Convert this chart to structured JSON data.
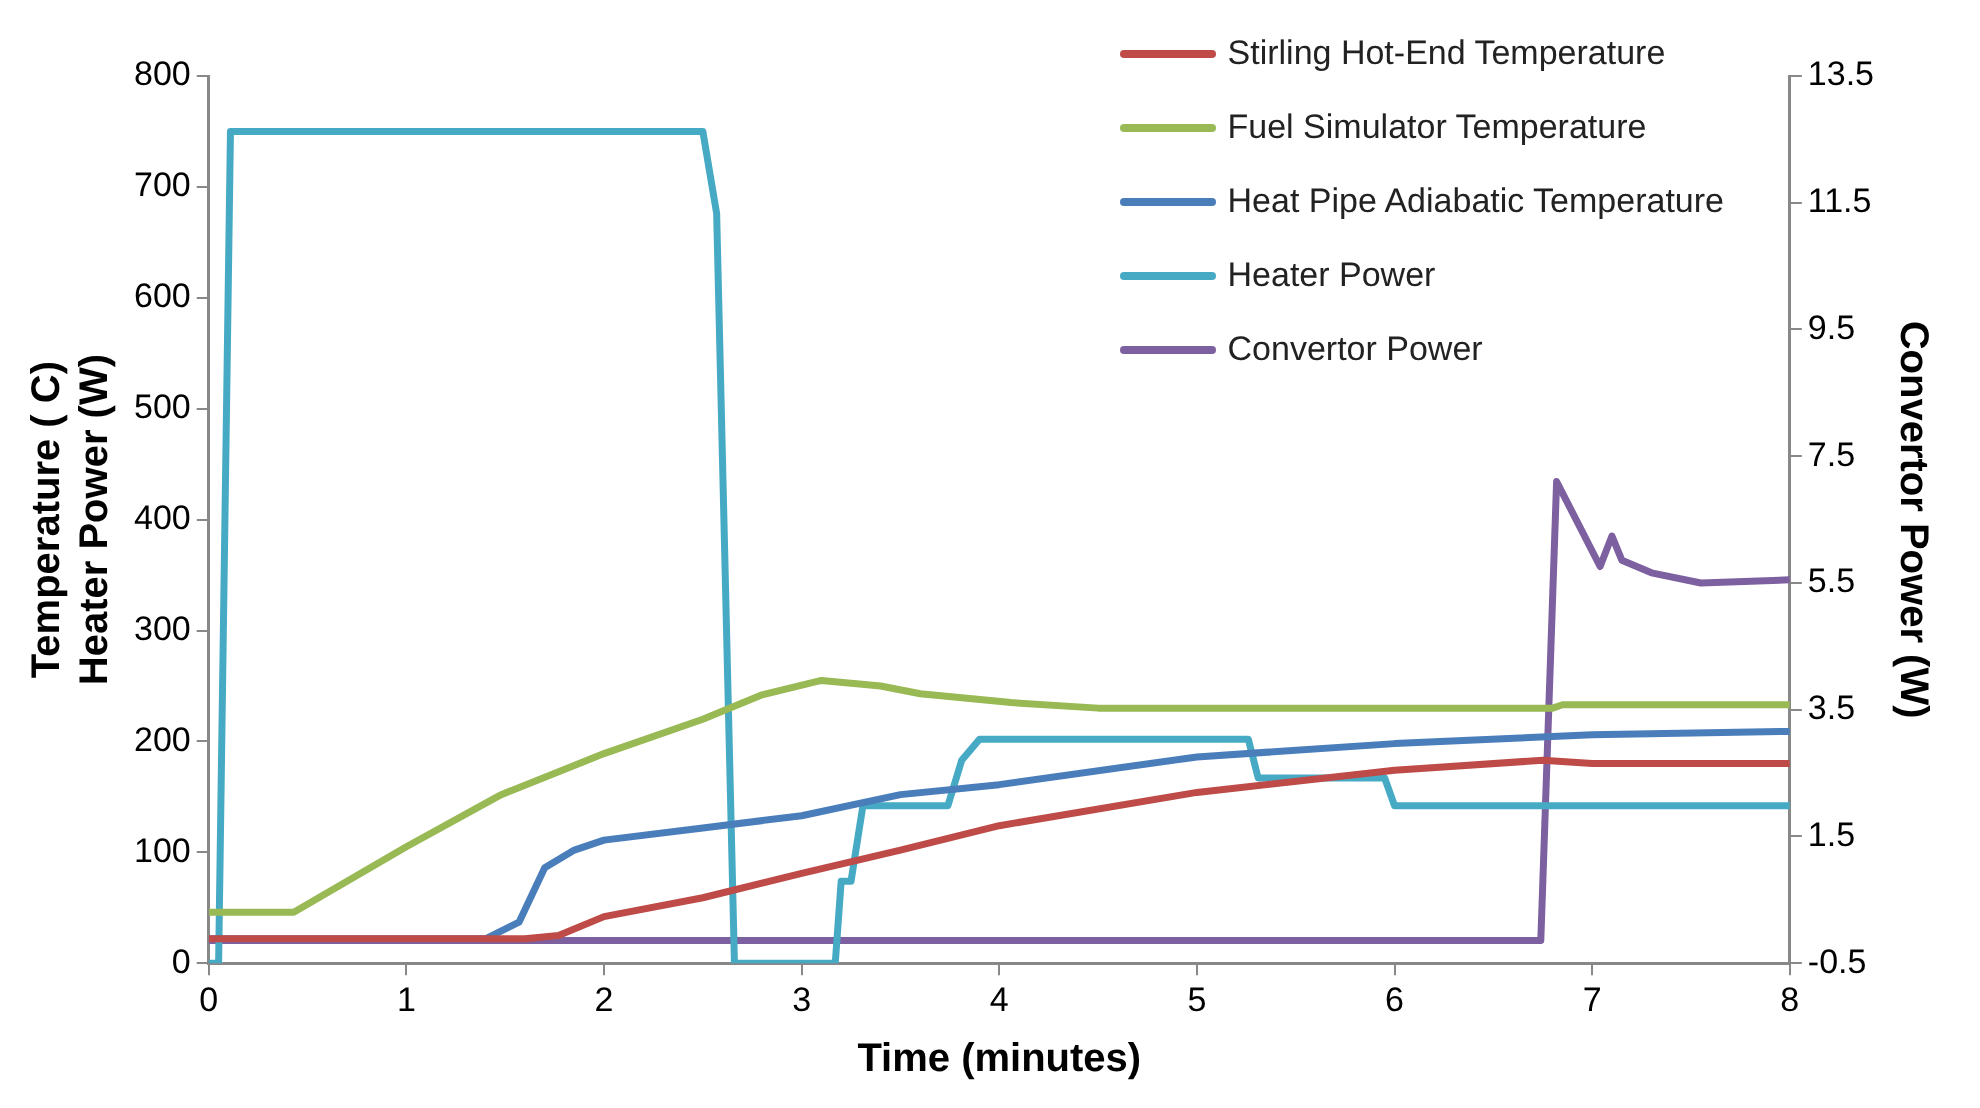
{
  "chart_data": {
    "type": "line",
    "xlabel": "Time (minutes)",
    "ylabel": "Temperature ( C)\nHeater Power (W)",
    "y2label": "Convertor Power (W)",
    "xlim": [
      0,
      8
    ],
    "xticks": [
      0,
      1,
      2,
      3,
      4,
      5,
      6,
      7,
      8
    ],
    "ylim": [
      0,
      800
    ],
    "yticks": [
      0,
      100,
      200,
      300,
      400,
      500,
      600,
      700,
      800
    ],
    "y2lim": [
      -0.5,
      13.5
    ],
    "y2ticks": [
      -0.5,
      1.5,
      3.5,
      5.5,
      7.5,
      9.5,
      11.5,
      13.5
    ],
    "grid": false,
    "legend": "top right",
    "marker": "none",
    "line_style": "solid",
    "series": [
      {
        "name": "Stirling Hot-End Temperature",
        "color": "#be4b48",
        "x": [
          0,
          1.6,
          1.77,
          2,
          2.5,
          3,
          3.5,
          4,
          5,
          6,
          6.75,
          7,
          8
        ],
        "values": [
          22,
          22,
          25,
          42,
          59,
          81,
          102,
          124,
          154,
          174,
          183,
          180,
          180
        ]
      },
      {
        "name": "Fuel Simulator Temperature",
        "color": "#98b954",
        "x": [
          0,
          0.43,
          1,
          1.48,
          2,
          2.5,
          2.8,
          3.1,
          3.4,
          3.6,
          4.06,
          4.5,
          6.8,
          6.85,
          8
        ],
        "values": [
          46,
          46,
          105,
          152,
          189,
          220,
          242,
          255,
          250,
          243,
          235,
          230,
          230,
          233,
          233
        ]
      },
      {
        "name": "Heat Pipe Adiabatic Temperature",
        "color": "#4a7ebb",
        "x": [
          0,
          1.4,
          1.57,
          1.7,
          1.85,
          2,
          2.5,
          3,
          3.5,
          4,
          5,
          6,
          7,
          8
        ],
        "values": [
          22,
          22,
          37,
          86,
          102,
          111,
          122,
          133,
          152,
          161,
          186,
          198,
          206,
          209
        ]
      },
      {
        "name": "Heater Power",
        "color": "#46aac5",
        "x": [
          0,
          0.05,
          0.11,
          2.5,
          2.57,
          2.66,
          3.17,
          3.2,
          3.25,
          3.31,
          3.74,
          3.81,
          3.9,
          5.26,
          5.31,
          5.95,
          6,
          8
        ],
        "values": [
          0,
          0,
          750,
          750,
          676,
          0,
          0,
          74,
          74,
          142,
          142,
          183,
          202,
          202,
          167,
          167,
          142,
          142
        ]
      },
      {
        "name": "Convertor Power",
        "color": "#7d60a0",
        "axis": "y2",
        "x": [
          0,
          6.74,
          6.82,
          7.04,
          7.1,
          7.15,
          7.3,
          7.55,
          8
        ],
        "values": [
          -0.14,
          -0.14,
          7.1,
          5.76,
          6.24,
          5.86,
          5.66,
          5.5,
          5.55
        ]
      }
    ]
  }
}
